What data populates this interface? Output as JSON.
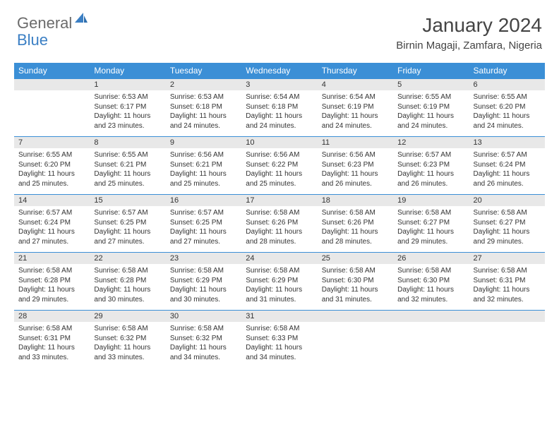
{
  "brand": {
    "part1": "General",
    "part2": "Blue"
  },
  "title": "January 2024",
  "location": "Birnin Magaji, Zamfara, Nigeria",
  "colors": {
    "header_bg": "#3b8fd6",
    "header_text": "#ffffff",
    "daynum_bg": "#e8e8e8",
    "rule": "#3b8fd6",
    "text": "#333333",
    "logo_gray": "#6b6b6b",
    "logo_blue": "#3b7fc4"
  },
  "weekdays": [
    "Sunday",
    "Monday",
    "Tuesday",
    "Wednesday",
    "Thursday",
    "Friday",
    "Saturday"
  ],
  "weeks": [
    [
      null,
      {
        "n": "1",
        "sr": "Sunrise: 6:53 AM",
        "ss": "Sunset: 6:17 PM",
        "dl": "Daylight: 11 hours and 23 minutes."
      },
      {
        "n": "2",
        "sr": "Sunrise: 6:53 AM",
        "ss": "Sunset: 6:18 PM",
        "dl": "Daylight: 11 hours and 24 minutes."
      },
      {
        "n": "3",
        "sr": "Sunrise: 6:54 AM",
        "ss": "Sunset: 6:18 PM",
        "dl": "Daylight: 11 hours and 24 minutes."
      },
      {
        "n": "4",
        "sr": "Sunrise: 6:54 AM",
        "ss": "Sunset: 6:19 PM",
        "dl": "Daylight: 11 hours and 24 minutes."
      },
      {
        "n": "5",
        "sr": "Sunrise: 6:55 AM",
        "ss": "Sunset: 6:19 PM",
        "dl": "Daylight: 11 hours and 24 minutes."
      },
      {
        "n": "6",
        "sr": "Sunrise: 6:55 AM",
        "ss": "Sunset: 6:20 PM",
        "dl": "Daylight: 11 hours and 24 minutes."
      }
    ],
    [
      {
        "n": "7",
        "sr": "Sunrise: 6:55 AM",
        "ss": "Sunset: 6:20 PM",
        "dl": "Daylight: 11 hours and 25 minutes."
      },
      {
        "n": "8",
        "sr": "Sunrise: 6:55 AM",
        "ss": "Sunset: 6:21 PM",
        "dl": "Daylight: 11 hours and 25 minutes."
      },
      {
        "n": "9",
        "sr": "Sunrise: 6:56 AM",
        "ss": "Sunset: 6:21 PM",
        "dl": "Daylight: 11 hours and 25 minutes."
      },
      {
        "n": "10",
        "sr": "Sunrise: 6:56 AM",
        "ss": "Sunset: 6:22 PM",
        "dl": "Daylight: 11 hours and 25 minutes."
      },
      {
        "n": "11",
        "sr": "Sunrise: 6:56 AM",
        "ss": "Sunset: 6:23 PM",
        "dl": "Daylight: 11 hours and 26 minutes."
      },
      {
        "n": "12",
        "sr": "Sunrise: 6:57 AM",
        "ss": "Sunset: 6:23 PM",
        "dl": "Daylight: 11 hours and 26 minutes."
      },
      {
        "n": "13",
        "sr": "Sunrise: 6:57 AM",
        "ss": "Sunset: 6:24 PM",
        "dl": "Daylight: 11 hours and 26 minutes."
      }
    ],
    [
      {
        "n": "14",
        "sr": "Sunrise: 6:57 AM",
        "ss": "Sunset: 6:24 PM",
        "dl": "Daylight: 11 hours and 27 minutes."
      },
      {
        "n": "15",
        "sr": "Sunrise: 6:57 AM",
        "ss": "Sunset: 6:25 PM",
        "dl": "Daylight: 11 hours and 27 minutes."
      },
      {
        "n": "16",
        "sr": "Sunrise: 6:57 AM",
        "ss": "Sunset: 6:25 PM",
        "dl": "Daylight: 11 hours and 27 minutes."
      },
      {
        "n": "17",
        "sr": "Sunrise: 6:58 AM",
        "ss": "Sunset: 6:26 PM",
        "dl": "Daylight: 11 hours and 28 minutes."
      },
      {
        "n": "18",
        "sr": "Sunrise: 6:58 AM",
        "ss": "Sunset: 6:26 PM",
        "dl": "Daylight: 11 hours and 28 minutes."
      },
      {
        "n": "19",
        "sr": "Sunrise: 6:58 AM",
        "ss": "Sunset: 6:27 PM",
        "dl": "Daylight: 11 hours and 29 minutes."
      },
      {
        "n": "20",
        "sr": "Sunrise: 6:58 AM",
        "ss": "Sunset: 6:27 PM",
        "dl": "Daylight: 11 hours and 29 minutes."
      }
    ],
    [
      {
        "n": "21",
        "sr": "Sunrise: 6:58 AM",
        "ss": "Sunset: 6:28 PM",
        "dl": "Daylight: 11 hours and 29 minutes."
      },
      {
        "n": "22",
        "sr": "Sunrise: 6:58 AM",
        "ss": "Sunset: 6:28 PM",
        "dl": "Daylight: 11 hours and 30 minutes."
      },
      {
        "n": "23",
        "sr": "Sunrise: 6:58 AM",
        "ss": "Sunset: 6:29 PM",
        "dl": "Daylight: 11 hours and 30 minutes."
      },
      {
        "n": "24",
        "sr": "Sunrise: 6:58 AM",
        "ss": "Sunset: 6:29 PM",
        "dl": "Daylight: 11 hours and 31 minutes."
      },
      {
        "n": "25",
        "sr": "Sunrise: 6:58 AM",
        "ss": "Sunset: 6:30 PM",
        "dl": "Daylight: 11 hours and 31 minutes."
      },
      {
        "n": "26",
        "sr": "Sunrise: 6:58 AM",
        "ss": "Sunset: 6:30 PM",
        "dl": "Daylight: 11 hours and 32 minutes."
      },
      {
        "n": "27",
        "sr": "Sunrise: 6:58 AM",
        "ss": "Sunset: 6:31 PM",
        "dl": "Daylight: 11 hours and 32 minutes."
      }
    ],
    [
      {
        "n": "28",
        "sr": "Sunrise: 6:58 AM",
        "ss": "Sunset: 6:31 PM",
        "dl": "Daylight: 11 hours and 33 minutes."
      },
      {
        "n": "29",
        "sr": "Sunrise: 6:58 AM",
        "ss": "Sunset: 6:32 PM",
        "dl": "Daylight: 11 hours and 33 minutes."
      },
      {
        "n": "30",
        "sr": "Sunrise: 6:58 AM",
        "ss": "Sunset: 6:32 PM",
        "dl": "Daylight: 11 hours and 34 minutes."
      },
      {
        "n": "31",
        "sr": "Sunrise: 6:58 AM",
        "ss": "Sunset: 6:33 PM",
        "dl": "Daylight: 11 hours and 34 minutes."
      },
      null,
      null,
      null
    ]
  ]
}
